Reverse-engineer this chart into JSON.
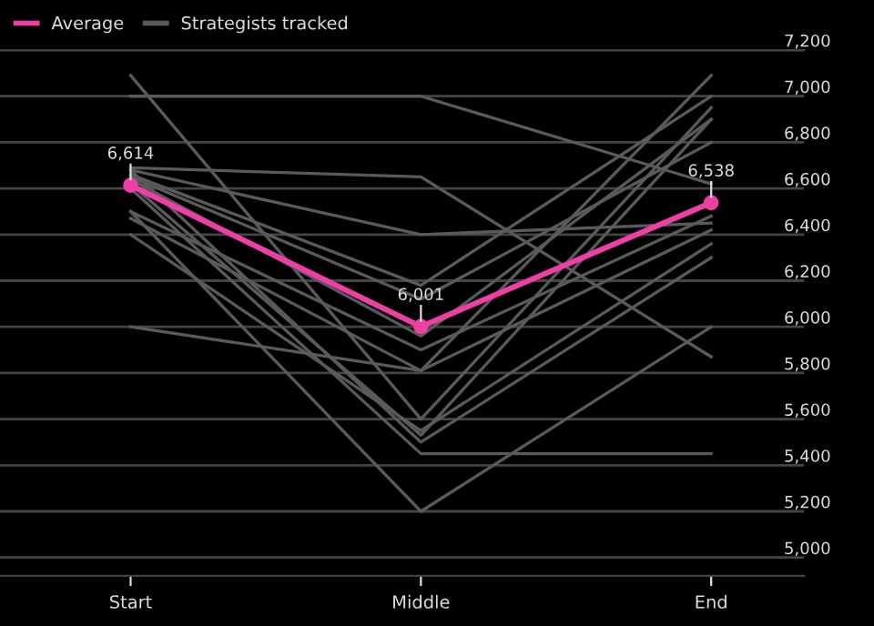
{
  "chart_data": {
    "type": "line",
    "categories": [
      "Start",
      "Middle",
      "End"
    ],
    "series": [
      {
        "name": "Strategists tracked",
        "color": "#5a5a5a",
        "values": [
          7090,
          5600,
          6950
        ]
      },
      {
        "color": "#5a5a5a",
        "values": [
          7000,
          7000,
          6620
        ]
      },
      {
        "color": "#5a5a5a",
        "values": [
          6690,
          6650,
          5870
        ]
      },
      {
        "color": "#5a5a5a",
        "values": [
          6680,
          6400,
          6450
        ]
      },
      {
        "color": "#5a5a5a",
        "values": [
          6660,
          6180,
          7000
        ]
      },
      {
        "color": "#5a5a5a",
        "values": [
          6650,
          6120,
          6800
        ]
      },
      {
        "color": "#5a5a5a",
        "values": [
          6640,
          5960,
          6900
        ]
      },
      {
        "color": "#5a5a5a",
        "values": [
          6500,
          5900,
          6480
        ]
      },
      {
        "color": "#5a5a5a",
        "values": [
          6470,
          5810,
          7090
        ]
      },
      {
        "color": "#5a5a5a",
        "values": [
          6400,
          5550,
          6360
        ]
      },
      {
        "color": "#5a5a5a",
        "values": [
          6680,
          5500,
          6300
        ]
      },
      {
        "color": "#5a5a5a",
        "values": [
          6600,
          5450,
          5450
        ]
      },
      {
        "color": "#5a5a5a",
        "values": [
          6500,
          5200,
          6000
        ]
      },
      {
        "color": "#5a5a5a",
        "values": [
          6000,
          5810,
          6420
        ]
      },
      {
        "color": "#5a5a5a",
        "values": [
          6620,
          5530,
          6900
        ]
      },
      {
        "name": "Average",
        "color": "#ee3fa6",
        "values": [
          6614,
          6001,
          6538
        ],
        "marker": "circle",
        "value_labels": [
          "6,614",
          "6,001",
          "6,538"
        ]
      }
    ],
    "ylim": [
      4920,
      7200
    ],
    "yticks": [
      {
        "value": 5000,
        "label": "5,000"
      },
      {
        "value": 5200,
        "label": "5,200"
      },
      {
        "value": 5400,
        "label": "5,400"
      },
      {
        "value": 5600,
        "label": "5,600"
      },
      {
        "value": 5800,
        "label": "5,800"
      },
      {
        "value": 6000,
        "label": "6,000"
      },
      {
        "value": 6200,
        "label": "6,200"
      },
      {
        "value": 6400,
        "label": "6,400"
      },
      {
        "value": 6600,
        "label": "6,600"
      },
      {
        "value": 6800,
        "label": "6,800"
      },
      {
        "value": 7000,
        "label": "7,000"
      },
      {
        "value": 7200,
        "label": "7,200"
      }
    ],
    "grid": "y",
    "legend": "top left"
  }
}
